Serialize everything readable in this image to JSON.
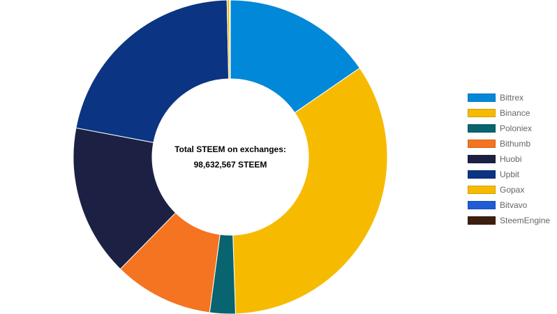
{
  "chart_data": {
    "type": "pie",
    "variant": "doughnut",
    "center_text": {
      "line1": "Total STEEM on exchanges:",
      "line2": "98,632,567 STEEM"
    },
    "legend_position": "right",
    "categories": [
      "Bittrex",
      "Binance",
      "Poloniex",
      "Bithumb",
      "Huobi",
      "Upbit",
      "Gopax",
      "Bitvavo",
      "SteemEngine"
    ],
    "values": [
      15200000,
      33600000,
      2600000,
      10100000,
      15400000,
      21400000,
      250000,
      50000,
      32567
    ],
    "colors": [
      "#0288d8",
      "#f6bb00",
      "#08646e",
      "#f47421",
      "#1c2144",
      "#0b3483",
      "#f6bb00",
      "#1f5cd6",
      "#3d1f10"
    ]
  }
}
